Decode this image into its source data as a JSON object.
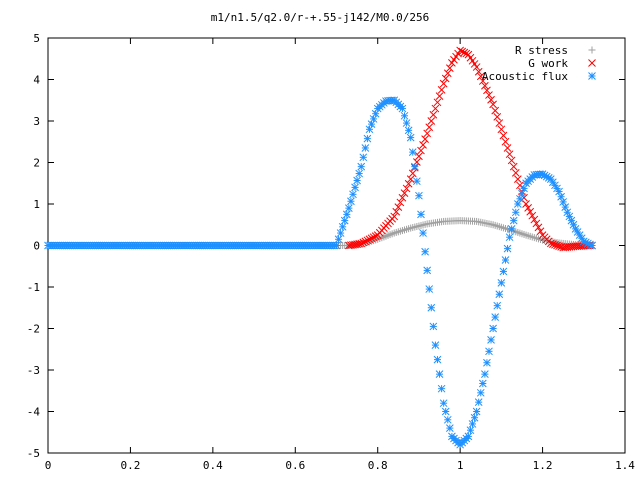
{
  "chart_data": {
    "type": "scatter",
    "title": "m1/n1.5/q2.0/r-+.55-j142/M0.0/256",
    "xlabel": "",
    "ylabel": "",
    "xlim": [
      0,
      1.4
    ],
    "ylim": [
      -5,
      5
    ],
    "x_ticks": [
      "0",
      "0.2",
      "0.4",
      "0.6",
      "0.8",
      "1",
      "1.2",
      "1.4"
    ],
    "y_ticks": [
      "5",
      "4",
      "3",
      "2",
      "1",
      "0",
      "-1",
      "-2",
      "-3",
      "-4",
      "-5"
    ],
    "grid": false,
    "legend_position": "top-right",
    "series": [
      {
        "name": "R stress",
        "marker": "plus",
        "color": "#a0a0a0",
        "x": [
          0.0,
          0.05,
          0.1,
          0.15,
          0.2,
          0.25,
          0.3,
          0.35,
          0.4,
          0.45,
          0.5,
          0.55,
          0.6,
          0.65,
          0.7,
          0.73,
          0.76,
          0.8,
          0.84,
          0.88,
          0.92,
          0.96,
          1.0,
          1.04,
          1.08,
          1.12,
          1.16,
          1.2,
          1.24,
          1.28,
          1.32
        ],
        "y": [
          0,
          0,
          0,
          0,
          0,
          0,
          0,
          0,
          0,
          0,
          0,
          0,
          0,
          0,
          0,
          0,
          0.03,
          0.15,
          0.3,
          0.42,
          0.52,
          0.58,
          0.6,
          0.58,
          0.5,
          0.38,
          0.25,
          0.13,
          0.06,
          0.02,
          0
        ]
      },
      {
        "name": "G work",
        "marker": "cross",
        "color": "#ff0000",
        "x": [
          0.73,
          0.76,
          0.8,
          0.84,
          0.88,
          0.92,
          0.96,
          0.98,
          1.0,
          1.02,
          1.04,
          1.08,
          1.12,
          1.16,
          1.2,
          1.22,
          1.25,
          1.28,
          1.32
        ],
        "y": [
          0,
          0.05,
          0.25,
          0.7,
          1.6,
          2.7,
          3.9,
          4.4,
          4.7,
          4.6,
          4.3,
          3.4,
          2.2,
          1.0,
          0.25,
          0.05,
          -0.05,
          -0.02,
          0
        ]
      },
      {
        "name": "Acoustic flux",
        "marker": "star",
        "color": "#1e90ff",
        "x": [
          0.0,
          0.05,
          0.1,
          0.15,
          0.2,
          0.25,
          0.3,
          0.35,
          0.4,
          0.45,
          0.5,
          0.55,
          0.6,
          0.65,
          0.7,
          0.73,
          0.76,
          0.78,
          0.8,
          0.82,
          0.84,
          0.86,
          0.88,
          0.9,
          0.92,
          0.94,
          0.96,
          0.98,
          1.0,
          1.02,
          1.04,
          1.06,
          1.08,
          1.1,
          1.12,
          1.14,
          1.16,
          1.18,
          1.2,
          1.22,
          1.24,
          1.26,
          1.28,
          1.3,
          1.32
        ],
        "y": [
          0,
          0,
          0,
          0,
          0,
          0,
          0,
          0,
          0,
          0,
          0,
          0,
          0,
          0,
          0,
          0.9,
          1.9,
          2.8,
          3.3,
          3.48,
          3.5,
          3.3,
          2.6,
          1.2,
          -0.6,
          -2.4,
          -3.8,
          -4.6,
          -4.8,
          -4.6,
          -4.0,
          -3.1,
          -2.0,
          -0.9,
          0.2,
          1.0,
          1.5,
          1.7,
          1.72,
          1.6,
          1.3,
          0.8,
          0.4,
          0.1,
          0
        ]
      }
    ]
  }
}
